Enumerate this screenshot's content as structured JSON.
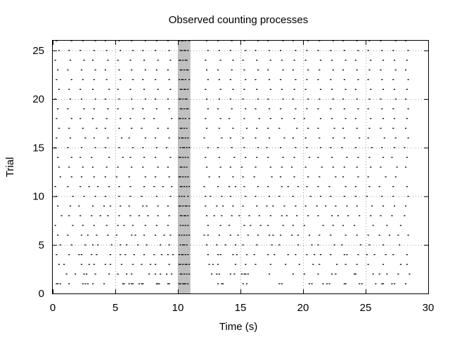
{
  "chart_data": {
    "type": "scatter",
    "title": "Observed counting processes",
    "xlabel": "Time (s)",
    "ylabel": "Trial",
    "xlim": [
      0,
      30
    ],
    "ylim": [
      0,
      26
    ],
    "xticks": [
      0,
      5,
      10,
      15,
      20,
      25,
      30
    ],
    "yticks": [
      0,
      5,
      10,
      15,
      20,
      25
    ],
    "xtick_labels": [
      "0",
      "5",
      "10",
      "15",
      "20",
      "25",
      "30"
    ],
    "ytick_labels": [
      "0",
      "5",
      "10",
      "15",
      "20",
      "25"
    ],
    "grid": true,
    "marker_color": "#000000",
    "highlight_band": {
      "x_start": 10,
      "x_end": 11,
      "color": "#c0c0c0"
    },
    "trials": [
      [
        0.3,
        0.4,
        0.6,
        1.3,
        2.4,
        2.6,
        2.8,
        3.2,
        4.1,
        5.6,
        5.7,
        6.1,
        6.3,
        6.4,
        6.9,
        7.1,
        7.2,
        8.3,
        8.4,
        8.5,
        9.2,
        9.3,
        10.1,
        10.2,
        10.4,
        10.5,
        10.6,
        10.8,
        13.2,
        13.5,
        13.6,
        15.2,
        15.5,
        18.1,
        18.3,
        20.5,
        20.7,
        21.6,
        21.9,
        22.1,
        23.3,
        23.4,
        24.5,
        24.7,
        25.8,
        26.3,
        26.4,
        27.1,
        27.3,
        28.2
      ],
      [
        1.1,
        1.8,
        2.5,
        2.7,
        3.4,
        4.5,
        5.2,
        5.9,
        6.3,
        7.7,
        8.2,
        8.6,
        9.1,
        9.5,
        10.2,
        10.3,
        10.5,
        10.7,
        10.9,
        12.7,
        13.1,
        13.3,
        14.2,
        14.5,
        15.1,
        15.3,
        15.4,
        15.6,
        17.3,
        19.2,
        20.1,
        21.2,
        22.3,
        22.6,
        24.1,
        24.2,
        25.6,
        26.1,
        26.7,
        27.6,
        28.5
      ],
      [
        0.5,
        0.9,
        2.3,
        2.9,
        3.3,
        4.2,
        4.6,
        5.5,
        6.4,
        7.1,
        7.8,
        8.2,
        9.3,
        10.1,
        10.2,
        10.4,
        10.6,
        10.7,
        10.9,
        12.5,
        12.8,
        13.2,
        14.6,
        15.4,
        16.2,
        17.4,
        18.6,
        19.7,
        20.8,
        21.3,
        22.7,
        23.4,
        24.3,
        25.2,
        26.4,
        27.8,
        28.3
      ],
      [
        0.3,
        1.3,
        2.1,
        2.3,
        3.1,
        3.5,
        4.6,
        5.4,
        5.8,
        6.5,
        7.3,
        8.1,
        8.7,
        9.2,
        9.6,
        10.1,
        10.3,
        10.4,
        10.6,
        10.8,
        12.4,
        13.2,
        13.4,
        14.4,
        14.7,
        15.5,
        16.1,
        17.2,
        17.7,
        18.8,
        19.4,
        20.3,
        20.9,
        21.4,
        22.2,
        23.3,
        23.5,
        24.4,
        25.1,
        25.7,
        26.6,
        27.2,
        28.3
      ],
      [
        0.6,
        1.5,
        2.6,
        3.2,
        3.6,
        4.7,
        5.4,
        5.9,
        6.8,
        7.5,
        8.6,
        9.3,
        10.2,
        10.4,
        10.5,
        10.7,
        12.3,
        13.1,
        13.8,
        14.6,
        15.2,
        16.3,
        17.5,
        18.1,
        19.6,
        20.7,
        21.2,
        22.5,
        23.1,
        24.6,
        25.3,
        26.4,
        27.7
      ],
      [
        0.4,
        1.2,
        2.3,
        2.8,
        3.5,
        4.4,
        5.1,
        6.3,
        6.6,
        7.3,
        8.2,
        8.9,
        9.4,
        10.1,
        10.3,
        10.5,
        10.7,
        10.9,
        12.1,
        12.4,
        13.3,
        14.2,
        14.8,
        15.6,
        16.4,
        17.3,
        17.6,
        18.2,
        19.1,
        19.6,
        20.5,
        21.3,
        22.2,
        23.4,
        24.3,
        25.2,
        26.1,
        26.9,
        27.6,
        28.4
      ],
      [
        0.2,
        1.6,
        2.4,
        3.3,
        4.3,
        5.2,
        5.7,
        6.4,
        7.4,
        8.3,
        9.2,
        10.2,
        10.4,
        10.6,
        10.8,
        12.4,
        13.4,
        14.1,
        15.3,
        15.8,
        16.6,
        17.2,
        18.4,
        19.2,
        20.1,
        21.6,
        22.4,
        23.2,
        24.1,
        25.6,
        26.7,
        27.8
      ],
      [
        0.7,
        1.3,
        2.2,
        3.1,
        3.8,
        4.4,
        5.3,
        6.2,
        6.9,
        7.6,
        8.4,
        9.3,
        10.2,
        10.3,
        10.5,
        10.6,
        10.8,
        12.3,
        12.9,
        13.5,
        14.3,
        14.9,
        15.7,
        16.5,
        17.4,
        18.3,
        18.7,
        19.5,
        20.4,
        21.2,
        22.3,
        22.8,
        23.6,
        24.5,
        25.4,
        26.2,
        27.1,
        28.1
      ],
      [
        0.4,
        1.4,
        2.1,
        3.2,
        4.1,
        4.6,
        5.4,
        6.1,
        7.2,
        7.5,
        8.4,
        9.2,
        10.1,
        10.2,
        10.4,
        10.6,
        10.7,
        10.9,
        12.2,
        13.1,
        13.6,
        14.4,
        15.2,
        16.3,
        17.1,
        17.6,
        18.5,
        19.4,
        20.2,
        21.1,
        21.8,
        22.6,
        23.5,
        24.3,
        25.5,
        26.4,
        27.3,
        28.2
      ],
      [
        0.3,
        1.6,
        2.5,
        3.4,
        4.2,
        5.3,
        6.2,
        7.1,
        8.3,
        9.4,
        10.1,
        10.3,
        10.5,
        10.8,
        12.2,
        12.6,
        13.5,
        14.2,
        15.4,
        16.2,
        17.3,
        18.1,
        19.2,
        20.6,
        21.4,
        22.2,
        23.3,
        24.2,
        25.1,
        26.3,
        27.2,
        28.4
      ],
      [
        0.2,
        1.2,
        2.2,
        2.9,
        3.6,
        4.5,
        5.3,
        6.2,
        7.3,
        8.1,
        8.8,
        9.5,
        10.2,
        10.3,
        10.5,
        10.7,
        10.9,
        12.1,
        13.2,
        14.1,
        14.6,
        15.3,
        16.4,
        17.2,
        18.3,
        18.8,
        19.6,
        20.3,
        21.2,
        22.1,
        23.4,
        24.2,
        25.3,
        26.1,
        27.2,
        28.3
      ],
      [
        0.6,
        1.5,
        2.3,
        3.3,
        4.2,
        5.1,
        6.1,
        7.4,
        8.2,
        9.3,
        10.1,
        10.2,
        10.4,
        10.6,
        10.8,
        12.5,
        13.3,
        14.4,
        15.2,
        16.1,
        17.5,
        18.2,
        19.3,
        20.4,
        21.3,
        22.6,
        23.2,
        24.4,
        25.2,
        26.6,
        27.4
      ],
      [
        0.5,
        1.3,
        2.4,
        3.2,
        4.3,
        5.2,
        6.3,
        7.2,
        8.4,
        9.2,
        10.2,
        10.3,
        10.5,
        10.7,
        12.3,
        13.4,
        14.2,
        15.1,
        16.2,
        17.4,
        18.3,
        19.1,
        20.2,
        21.5,
        22.4,
        23.3,
        24.3,
        25.4,
        26.2,
        27.5,
        28.2
      ],
      [
        0.4,
        1.5,
        2.2,
        3.1,
        4.5,
        5.6,
        6.2,
        7.3,
        8.2,
        9.4,
        10.1,
        10.2,
        10.4,
        10.6,
        10.8,
        12.2,
        13.3,
        14.5,
        15.4,
        16.3,
        17.2,
        18.4,
        19.3,
        20.5,
        21.2,
        22.3,
        23.5,
        24.4,
        25.3,
        26.4,
        27.1,
        28.3
      ],
      [
        0.2,
        1.2,
        2.3,
        3.4,
        4.2,
        5.3,
        6.4,
        7.2,
        8.3,
        9.1,
        10.2,
        10.4,
        10.5,
        10.7,
        10.9,
        12.4,
        13.2,
        14.3,
        15.3,
        16.4,
        17.1,
        18.2,
        19.4,
        20.3,
        21.4,
        22.2,
        23.1,
        24.2,
        25.5,
        26.3,
        27.3,
        28.1
      ],
      [
        0.3,
        1.4,
        2.6,
        3.3,
        4.4,
        5.5,
        6.1,
        7.4,
        8.2,
        9.3,
        10.1,
        10.3,
        10.4,
        10.6,
        10.8,
        12.1,
        13.5,
        14.2,
        15.2,
        16.2,
        17.3,
        18.5,
        19.2,
        20.2,
        21.3,
        22.4,
        23.3,
        24.5,
        25.2,
        26.5,
        27.4,
        28.4
      ],
      [
        0.5,
        1.3,
        2.4,
        3.5,
        4.2,
        5.3,
        6.3,
        7.1,
        8.4,
        9.2,
        10.2,
        10.3,
        10.5,
        10.7,
        12.3,
        13.3,
        14.4,
        15.5,
        16.3,
        17.2,
        18.1,
        19.5,
        20.4,
        21.2,
        22.5,
        23.2,
        24.3,
        25.3,
        26.2,
        27.2,
        28.2
      ],
      [
        0.3,
        1.5,
        2.2,
        3.2,
        4.3,
        5.4,
        6.2,
        7.3,
        8.1,
        9.5,
        10.1,
        10.2,
        10.4,
        10.6,
        10.9,
        12.2,
        13.4,
        14.1,
        15.3,
        16.5,
        17.4,
        18.3,
        19.3,
        20.1,
        21.4,
        22.3,
        23.4,
        24.2,
        25.4,
        26.4,
        27.3,
        28.3
      ],
      [
        0.4,
        1.2,
        2.5,
        3.3,
        4.4,
        5.2,
        6.4,
        7.2,
        8.3,
        9.3,
        10.2,
        10.3,
        10.5,
        10.7,
        10.8,
        12.4,
        13.2,
        14.3,
        15.4,
        16.2,
        17.3,
        18.2,
        19.4,
        20.3,
        21.2,
        22.2,
        23.3,
        24.4,
        25.2,
        26.3,
        27.2,
        28.4
      ],
      [
        0.2,
        1.4,
        2.3,
        3.4,
        4.2,
        5.3,
        6.3,
        7.4,
        8.2,
        9.2,
        10.1,
        10.2,
        10.4,
        10.6,
        10.7,
        12.3,
        13.3,
        14.2,
        15.2,
        16.4,
        17.2,
        18.4,
        19.2,
        20.4,
        21.3,
        22.4,
        23.2,
        24.3,
        25.3,
        26.2,
        27.4,
        28.2
      ],
      [
        0.5,
        1.3,
        2.2,
        3.2,
        4.5,
        5.2,
        6.2,
        7.3,
        8.4,
        9.4,
        10.2,
        10.3,
        10.5,
        10.6,
        10.8,
        12.2,
        13.4,
        14.4,
        15.3,
        16.3,
        17.4,
        18.3,
        19.3,
        20.2,
        21.4,
        22.3,
        23.4,
        24.2,
        25.4,
        26.4,
        27.3,
        28.3
      ],
      [
        0.3,
        1.5,
        2.4,
        3.3,
        4.3,
        5.4,
        6.4,
        7.2,
        8.2,
        9.3,
        10.1,
        10.3,
        10.4,
        10.6,
        10.9,
        12.4,
        13.3,
        14.2,
        15.4,
        16.2,
        17.3,
        18.2,
        19.4,
        20.3,
        21.2,
        22.2,
        23.3,
        24.4,
        25.2,
        26.3,
        27.2,
        28.4
      ],
      [
        0.4,
        1.2,
        2.3,
        3.4,
        4.2,
        5.3,
        6.3,
        7.4,
        8.3,
        9.2,
        10.2,
        10.3,
        10.5,
        10.7,
        10.8,
        12.3,
        13.2,
        14.3,
        15.3,
        16.4,
        17.2,
        18.4,
        19.2,
        20.4,
        21.3,
        22.4,
        23.2,
        24.3,
        25.3,
        26.2,
        27.4,
        28.2
      ],
      [
        0.2,
        1.4,
        2.5,
        3.2,
        4.4,
        5.2,
        6.2,
        7.3,
        8.4,
        9.4,
        10.1,
        10.2,
        10.4,
        10.6,
        10.7,
        12.2,
        13.4,
        14.4,
        15.2,
        16.3,
        17.4,
        18.3,
        19.3,
        20.2,
        21.4,
        22.3,
        23.4,
        24.2,
        25.4,
        26.4,
        27.3,
        28.3
      ],
      [
        0.5,
        1.3,
        2.2,
        3.3,
        4.3,
        5.4,
        6.4,
        7.2,
        8.2,
        9.3,
        10.2,
        10.3,
        10.5,
        10.6,
        10.8,
        12.4,
        13.3,
        14.2,
        15.4,
        16.2,
        17.3,
        18.2,
        19.4,
        20.3,
        21.2,
        22.2,
        23.3,
        24.4,
        25.2,
        26.3,
        27.2,
        28.4
      ],
      [
        0.3,
        1.5,
        2.4,
        3.4,
        4.2,
        5.3,
        6.3,
        7.4,
        8.3,
        9.2,
        10.1,
        10.3,
        10.4,
        10.6,
        10.9,
        12.3,
        13.2,
        14.3,
        15.3,
        16.4,
        17.2,
        18.4,
        19.2,
        20.4,
        21.3,
        22.4,
        23.2,
        24.3,
        25.3,
        26.2,
        27.4,
        28.2
      ]
    ]
  }
}
